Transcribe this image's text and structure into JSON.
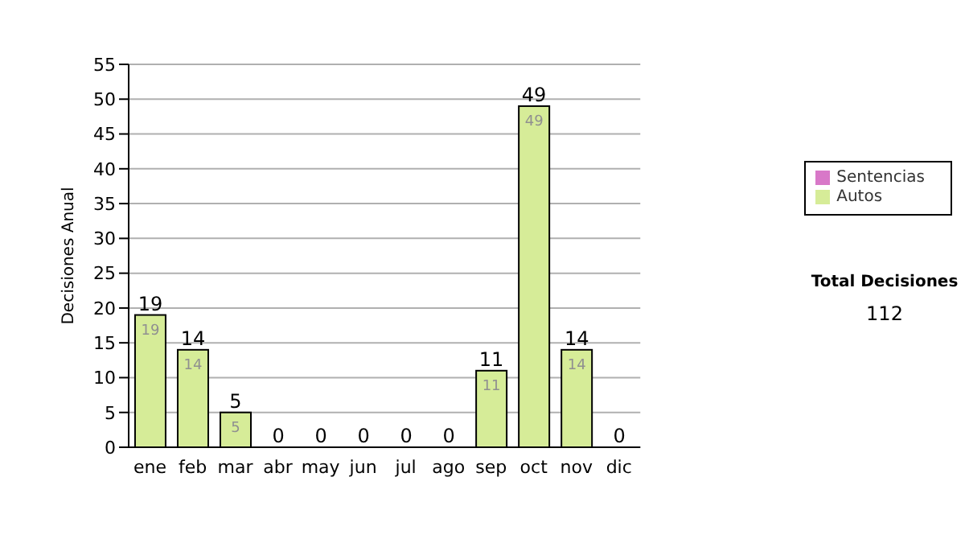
{
  "chart_data": {
    "type": "bar",
    "ylabel": "Decisiones Anual",
    "categories": [
      "ene",
      "feb",
      "mar",
      "abr",
      "may",
      "jun",
      "jul",
      "ago",
      "sep",
      "oct",
      "nov",
      "dic"
    ],
    "series": [
      {
        "name": "Sentencias",
        "color": "#d878c8",
        "values": [
          0,
          0,
          0,
          0,
          0,
          0,
          0,
          0,
          0,
          0,
          0,
          0
        ]
      },
      {
        "name": "Autos",
        "color": "#d6ec98",
        "values": [
          19,
          14,
          5,
          0,
          0,
          0,
          0,
          0,
          11,
          49,
          14,
          0
        ],
        "value_labels": [
          "19",
          "14",
          "5",
          null,
          null,
          null,
          null,
          null,
          "11",
          "49",
          "14",
          null
        ]
      }
    ],
    "stacked": true,
    "totals": [
      "19",
      "14",
      "5",
      "0",
      "0",
      "0",
      "0",
      "0",
      "11",
      "49",
      "14",
      "0"
    ],
    "ylim": [
      0,
      55
    ],
    "yticks": [
      0,
      5,
      10,
      15,
      20,
      25,
      30,
      35,
      40,
      45,
      50,
      55
    ],
    "grid": "y",
    "legend": "right",
    "annotations": [
      "Total Decisiones",
      "112"
    ]
  }
}
